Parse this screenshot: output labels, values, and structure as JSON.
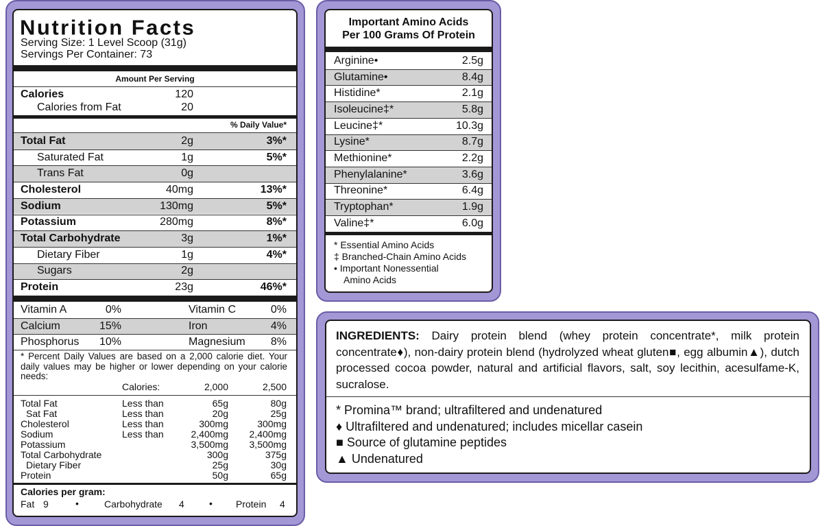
{
  "nutrition": {
    "title": "Nutrition Facts",
    "serving_size": "Serving Size: 1 Level Scoop (31g)",
    "servings_per_container": "Servings Per Container: 73",
    "amount_per_serving": "Amount Per Serving",
    "calories": {
      "label": "Calories",
      "value": "120"
    },
    "calories_from_fat": {
      "label": "Calories from Fat",
      "value": "20"
    },
    "daily_value_header": "% Daily Value*",
    "rows": [
      {
        "label": "Total Fat",
        "amount": "2g",
        "daily_value": "3%*"
      },
      {
        "label": "Saturated Fat",
        "amount": "1g",
        "daily_value": "5%*"
      },
      {
        "label": "Trans Fat",
        "amount": "0g"
      },
      {
        "label": "Cholesterol",
        "amount": "40mg",
        "daily_value": "13%*"
      },
      {
        "label": "Sodium",
        "amount": "130mg",
        "daily_value": "5%*"
      },
      {
        "label": "Potassium",
        "amount": "280mg",
        "daily_value": "8%*"
      },
      {
        "label": "Total Carbohydrate",
        "amount": "3g",
        "daily_value": "1%*"
      },
      {
        "label": "Dietary Fiber",
        "amount": "1g",
        "daily_value": "4%*"
      },
      {
        "label": "Sugars",
        "amount": "2g"
      },
      {
        "label": "Protein",
        "amount": "23g",
        "daily_value": "46%*"
      }
    ],
    "vitamins": [
      [
        "Vitamin A",
        "0%",
        "Vitamin C",
        "0%"
      ],
      [
        "Calcium",
        "15%",
        "Iron",
        "4%"
      ],
      [
        "Phosphorus",
        "10%",
        "Magnesium",
        "8%"
      ]
    ],
    "footnote": "* Percent Daily Values are based on a 2,000 calorie diet. Your daily values may be higher or lower depending on your calorie needs:",
    "calorie_header": [
      "Calories:",
      "2,000",
      "2,500"
    ],
    "limits": [
      [
        "Total Fat",
        "Less than",
        "65g",
        "80g"
      ],
      [
        "Sat Fat",
        "Less than",
        "20g",
        "25g"
      ],
      [
        "Cholesterol",
        "Less than",
        "300mg",
        "300mg"
      ],
      [
        "Sodium",
        "Less than",
        "2,400mg",
        "2,400mg"
      ],
      [
        "Potassium",
        "3,500mg",
        "3,500mg"
      ],
      [
        "Total Carbohydrate",
        "300g",
        "375g"
      ],
      [
        "Dietary Fiber",
        "25g",
        "30g"
      ],
      [
        "Protein",
        "50g",
        "65g"
      ]
    ],
    "calories_per_gram": {
      "title": "Calories per gram:",
      "items": [
        [
          "Fat",
          "9"
        ],
        [
          "Carbohydrate",
          "4"
        ],
        [
          "Protein",
          "4"
        ]
      ]
    }
  },
  "amino_acids": {
    "title": [
      "Important Amino Acids",
      "Per 100 Grams Of Protein"
    ],
    "rows": [
      [
        "Arginine•",
        "2.5g"
      ],
      [
        "Glutamine•",
        "8.4g"
      ],
      [
        "Histidine*",
        "2.1g"
      ],
      [
        "Isoleucine‡*",
        "5.8g"
      ],
      [
        "Leucine‡*",
        "10.3g"
      ],
      [
        "Lysine*",
        "8.7g"
      ],
      [
        "Methionine*",
        "2.2g"
      ],
      [
        "Phenylalanine*",
        "3.6g"
      ],
      [
        "Threonine*",
        "6.4g"
      ],
      [
        "Tryptophan*",
        "1.9g"
      ],
      [
        "Valine‡*",
        "6.0g"
      ]
    ],
    "legend": [
      "* Essential Amino Acids",
      "‡ Branched-Chain Amino Acids",
      "• Important Nonessential",
      "Amino Acids"
    ]
  },
  "ingredients": {
    "label": "INGREDIENTS:",
    "text": "Dairy protein blend (whey protein concentrate*, milk protein concentrate♦), non-dairy protein blend (hydrolyzed wheat gluten■, egg albumin▲), dutch processed cocoa powder, natural and artificial flavors, salt, soy lecithin, acesulfame-K, sucralose.",
    "notes": [
      "* Promina™ brand; ultrafiltered and undenatured",
      "♦ Ultrafiltered and undenatured; includes micellar casein",
      "■ Source of glutamine peptides",
      "▲ Undenatured"
    ]
  }
}
